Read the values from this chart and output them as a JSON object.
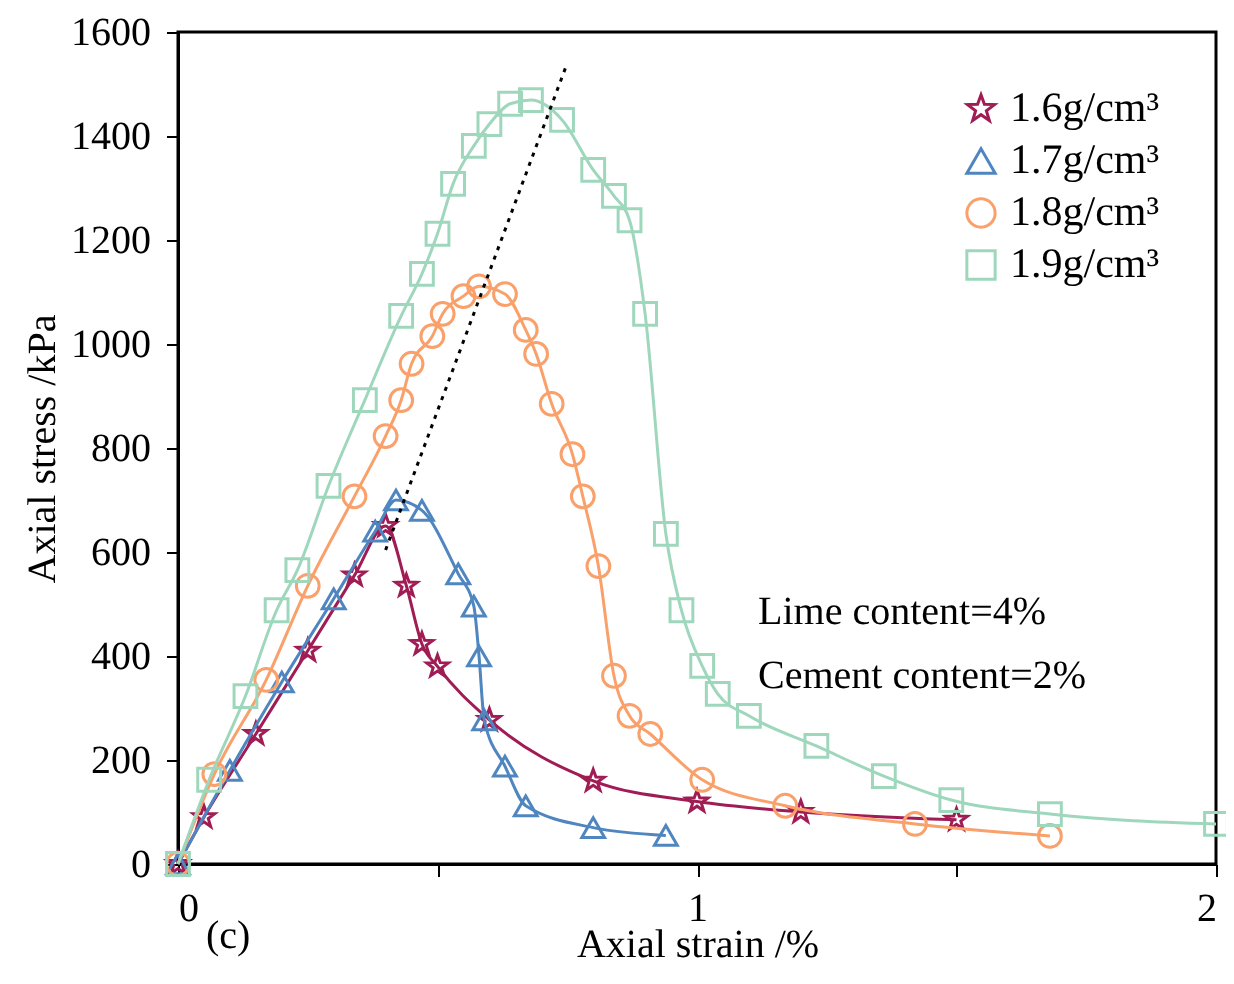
{
  "chart_data": {
    "type": "line",
    "xlabel": "Axial strain /%",
    "ylabel": "Axial stress /kPa",
    "xlim": [
      0,
      2
    ],
    "ylim": [
      0,
      1600
    ],
    "xticks": [
      0,
      {
        "value": 0.5,
        "label": null
      },
      1,
      {
        "value": 1.5,
        "label": null
      },
      2
    ],
    "yticks": [
      0,
      200,
      400,
      600,
      800,
      1000,
      1200,
      1400,
      1600
    ],
    "grid": false,
    "legend": "top right",
    "annotations": [
      "Lime content=4%",
      "Cement content=2%",
      "(c)"
    ],
    "series": [
      {
        "name": "1.6g/cm³",
        "color": "#a01c54",
        "marker": "star",
        "x": [
          0,
          0.05,
          0.15,
          0.25,
          0.34,
          0.4,
          0.44,
          0.47,
          0.5,
          0.6,
          0.8,
          1.0,
          1.2,
          1.5
        ],
        "values": [
          0,
          90,
          250,
          410,
          555,
          650,
          535,
          423,
          380,
          277,
          160,
          120,
          100,
          85
        ]
      },
      {
        "name": "1.7g/cm³",
        "color": "#4f86c0",
        "marker": "triangle",
        "x": [
          0,
          0.1,
          0.2,
          0.3,
          0.38,
          0.42,
          0.47,
          0.54,
          0.57,
          0.58,
          0.59,
          0.63,
          0.67,
          0.8,
          0.94
        ],
        "values": [
          0,
          180,
          350,
          510,
          640,
          700,
          680,
          558,
          496,
          400,
          277,
          188,
          112,
          70,
          55
        ]
      },
      {
        "name": "1.8g/cm³",
        "color": "#f9a06b",
        "marker": "circle",
        "x": [
          0,
          0.07,
          0.17,
          0.25,
          0.34,
          0.4,
          0.43,
          0.45,
          0.49,
          0.51,
          0.55,
          0.58,
          0.63,
          0.67,
          0.69,
          0.72,
          0.76,
          0.78,
          0.81,
          0.84,
          0.87,
          0.91,
          1.01,
          1.17,
          1.42,
          1.68
        ],
        "values": [
          0,
          173,
          354,
          535,
          707,
          823,
          892,
          962,
          1015,
          1058,
          1092,
          1111,
          1096,
          1027,
          981,
          885,
          788,
          707,
          573,
          362,
          285,
          250,
          162,
          112,
          77,
          54
        ]
      },
      {
        "name": "1.9g/cm³",
        "color": "#9fd7bd",
        "marker": "square",
        "x": [
          0,
          0.06,
          0.13,
          0.19,
          0.23,
          0.29,
          0.36,
          0.43,
          0.47,
          0.5,
          0.53,
          0.57,
          0.6,
          0.64,
          0.68,
          0.74,
          0.8,
          0.84,
          0.87,
          0.9,
          0.94,
          0.97,
          1.01,
          1.04,
          1.1,
          1.23,
          1.36,
          1.49,
          1.68,
          2.0
        ],
        "values": [
          0,
          162,
          323,
          488,
          565,
          727,
          892,
          1054,
          1135,
          1212,
          1308,
          1381,
          1423,
          1462,
          1469,
          1431,
          1335,
          1285,
          1238,
          1058,
          635,
          488,
          381,
          327,
          285,
          227,
          169,
          123,
          96,
          77
        ]
      },
      {
        "color": "#000000",
        "marker": "none",
        "line_style": "dotted",
        "x": [
          0.4,
          0.75
        ],
        "values": [
          604,
          1540
        ]
      }
    ]
  }
}
